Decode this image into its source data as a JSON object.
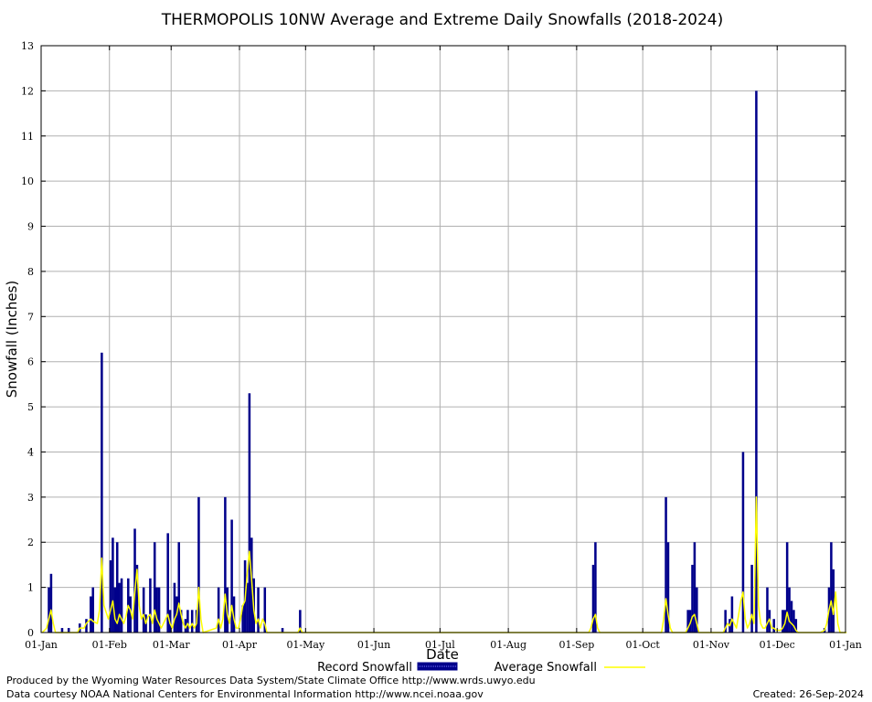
{
  "chart_data": {
    "type": "bar",
    "title": "THERMOPOLIS 10NW Average and Extreme Daily Snowfalls (2018-2024)",
    "xlabel": "Date",
    "ylabel": "Snowfall (Inches)",
    "ylim": [
      0,
      13
    ],
    "xlim_days": [
      0,
      365
    ],
    "grid": true,
    "y_ticks": [
      "0",
      "1",
      "2",
      "3",
      "4",
      "5",
      "6",
      "7",
      "8",
      "9",
      "10",
      "11",
      "12",
      "13"
    ],
    "x_ticks": [
      {
        "label": "01-Jan",
        "day": 0
      },
      {
        "label": "01-Feb",
        "day": 31
      },
      {
        "label": "01-Mar",
        "day": 59
      },
      {
        "label": "01-Apr",
        "day": 90
      },
      {
        "label": "01-May",
        "day": 120
      },
      {
        "label": "01-Jun",
        "day": 151
      },
      {
        "label": "01-Jul",
        "day": 181
      },
      {
        "label": "01-Aug",
        "day": 212
      },
      {
        "label": "01-Sep",
        "day": 243
      },
      {
        "label": "01-Oct",
        "day": 273
      },
      {
        "label": "01-Nov",
        "day": 304
      },
      {
        "label": "01-Dec",
        "day": 334
      },
      {
        "label": "01-Jan",
        "day": 365
      }
    ],
    "legend_position": "bottom",
    "series": [
      {
        "name": "Record Snowfall",
        "kind": "bar",
        "color": "#00008b",
        "points": [
          [
            3,
            1.0
          ],
          [
            4,
            1.3
          ],
          [
            9,
            0.1
          ],
          [
            12,
            0.1
          ],
          [
            17,
            0.2
          ],
          [
            20,
            0.3
          ],
          [
            22,
            0.8
          ],
          [
            23,
            1.0
          ],
          [
            27,
            6.2
          ],
          [
            31,
            1.6
          ],
          [
            32,
            2.1
          ],
          [
            33,
            1.0
          ],
          [
            34,
            2.0
          ],
          [
            35,
            1.1
          ],
          [
            36,
            1.2
          ],
          [
            39,
            1.2
          ],
          [
            40,
            0.8
          ],
          [
            42,
            2.3
          ],
          [
            43,
            1.5
          ],
          [
            46,
            1.0
          ],
          [
            47,
            0.4
          ],
          [
            49,
            1.2
          ],
          [
            51,
            2.0
          ],
          [
            52,
            1.0
          ],
          [
            53,
            1.0
          ],
          [
            57,
            2.2
          ],
          [
            58,
            0.5
          ],
          [
            60,
            1.1
          ],
          [
            61,
            0.8
          ],
          [
            62,
            2.0
          ],
          [
            63,
            0.5
          ],
          [
            65,
            0.3
          ],
          [
            66,
            0.5
          ],
          [
            68,
            0.5
          ],
          [
            70,
            0.5
          ],
          [
            71,
            3.0
          ],
          [
            80,
            1.0
          ],
          [
            83,
            3.0
          ],
          [
            84,
            1.0
          ],
          [
            86,
            2.5
          ],
          [
            87,
            0.8
          ],
          [
            91,
            0.6
          ],
          [
            92,
            1.6
          ],
          [
            93,
            1.1
          ],
          [
            94,
            5.3
          ],
          [
            95,
            2.1
          ],
          [
            96,
            1.2
          ],
          [
            98,
            1.0
          ],
          [
            101,
            1.0
          ],
          [
            109,
            0.1
          ],
          [
            117,
            0.5
          ],
          [
            250,
            1.5
          ],
          [
            251,
            2.0
          ],
          [
            283,
            3.0
          ],
          [
            284,
            2.0
          ],
          [
            293,
            0.5
          ],
          [
            294,
            0.5
          ],
          [
            295,
            1.5
          ],
          [
            296,
            2.0
          ],
          [
            297,
            1.0
          ],
          [
            310,
            0.5
          ],
          [
            312,
            0.3
          ],
          [
            313,
            0.8
          ],
          [
            318,
            4.0
          ],
          [
            322,
            1.5
          ],
          [
            324,
            12.0
          ],
          [
            329,
            1.0
          ],
          [
            330,
            0.5
          ],
          [
            332,
            0.3
          ],
          [
            336,
            0.5
          ],
          [
            337,
            0.5
          ],
          [
            338,
            2.0
          ],
          [
            339,
            1.0
          ],
          [
            340,
            0.7
          ],
          [
            341,
            0.5
          ],
          [
            342,
            0.3
          ],
          [
            355,
            0.1
          ],
          [
            357,
            1.0
          ],
          [
            358,
            2.0
          ],
          [
            359,
            1.4
          ]
        ]
      },
      {
        "name": "Average Snowfall",
        "kind": "line",
        "color": "#ffff00",
        "points": [
          [
            0,
            0.0
          ],
          [
            2,
            0.1
          ],
          [
            3,
            0.3
          ],
          [
            4,
            0.5
          ],
          [
            5,
            0.2
          ],
          [
            6,
            0.0
          ],
          [
            16,
            0.0
          ],
          [
            17,
            0.1
          ],
          [
            19,
            0.1
          ],
          [
            20,
            0.2
          ],
          [
            22,
            0.3
          ],
          [
            23,
            0.25
          ],
          [
            25,
            0.2
          ],
          [
            26,
            0.5
          ],
          [
            27,
            1.65
          ],
          [
            28,
            0.6
          ],
          [
            30,
            0.3
          ],
          [
            31,
            0.5
          ],
          [
            32,
            0.7
          ],
          [
            33,
            0.3
          ],
          [
            34,
            0.2
          ],
          [
            35,
            0.4
          ],
          [
            36,
            0.3
          ],
          [
            37,
            0.2
          ],
          [
            38,
            0.35
          ],
          [
            39,
            0.6
          ],
          [
            40,
            0.5
          ],
          [
            41,
            0.3
          ],
          [
            42,
            0.9
          ],
          [
            43,
            1.4
          ],
          [
            44,
            0.6
          ],
          [
            45,
            0.3
          ],
          [
            46,
            0.4
          ],
          [
            47,
            0.2
          ],
          [
            48,
            0.35
          ],
          [
            49,
            0.4
          ],
          [
            50,
            0.2
          ],
          [
            51,
            0.5
          ],
          [
            52,
            0.3
          ],
          [
            53,
            0.2
          ],
          [
            54,
            0.1
          ],
          [
            56,
            0.3
          ],
          [
            57,
            0.4
          ],
          [
            58,
            0.2
          ],
          [
            59,
            0.1
          ],
          [
            60,
            0.3
          ],
          [
            61,
            0.4
          ],
          [
            62,
            0.65
          ],
          [
            63,
            0.4
          ],
          [
            64,
            0.2
          ],
          [
            65,
            0.1
          ],
          [
            66,
            0.2
          ],
          [
            67,
            0.1
          ],
          [
            68,
            0.2
          ],
          [
            69,
            0.1
          ],
          [
            70,
            0.2
          ],
          [
            71,
            1.0
          ],
          [
            72,
            0.3
          ],
          [
            73,
            0.0
          ],
          [
            79,
            0.1
          ],
          [
            80,
            0.3
          ],
          [
            81,
            0.1
          ],
          [
            82,
            0.3
          ],
          [
            83,
            0.85
          ],
          [
            84,
            0.4
          ],
          [
            85,
            0.2
          ],
          [
            86,
            0.6
          ],
          [
            87,
            0.3
          ],
          [
            88,
            0.1
          ],
          [
            89,
            0.1
          ],
          [
            90,
            0.3
          ],
          [
            91,
            0.6
          ],
          [
            92,
            0.7
          ],
          [
            93,
            1.3
          ],
          [
            94,
            1.8
          ],
          [
            95,
            1.2
          ],
          [
            96,
            0.5
          ],
          [
            97,
            0.2
          ],
          [
            98,
            0.3
          ],
          [
            99,
            0.1
          ],
          [
            100,
            0.3
          ],
          [
            101,
            0.2
          ],
          [
            102,
            0.0
          ],
          [
            116,
            0.0
          ],
          [
            117,
            0.1
          ],
          [
            118,
            0.0
          ],
          [
            248,
            0.0
          ],
          [
            249,
            0.1
          ],
          [
            250,
            0.3
          ],
          [
            251,
            0.4
          ],
          [
            252,
            0.1
          ],
          [
            253,
            0.0
          ],
          [
            281,
            0.0
          ],
          [
            282,
            0.3
          ],
          [
            283,
            0.75
          ],
          [
            284,
            0.4
          ],
          [
            285,
            0.1
          ],
          [
            286,
            0.0
          ],
          [
            292,
            0.0
          ],
          [
            293,
            0.1
          ],
          [
            294,
            0.2
          ],
          [
            295,
            0.35
          ],
          [
            296,
            0.4
          ],
          [
            297,
            0.2
          ],
          [
            298,
            0.0
          ],
          [
            309,
            0.0
          ],
          [
            310,
            0.1
          ],
          [
            311,
            0.2
          ],
          [
            312,
            0.15
          ],
          [
            313,
            0.3
          ],
          [
            314,
            0.2
          ],
          [
            315,
            0.1
          ],
          [
            316,
            0.4
          ],
          [
            317,
            0.7
          ],
          [
            318,
            0.9
          ],
          [
            319,
            0.3
          ],
          [
            320,
            0.1
          ],
          [
            321,
            0.2
          ],
          [
            322,
            0.4
          ],
          [
            323,
            0.2
          ],
          [
            324,
            3.0
          ],
          [
            325,
            0.6
          ],
          [
            326,
            0.2
          ],
          [
            327,
            0.1
          ],
          [
            328,
            0.1
          ],
          [
            329,
            0.2
          ],
          [
            330,
            0.3
          ],
          [
            331,
            0.1
          ],
          [
            332,
            0.1
          ],
          [
            333,
            0.05
          ],
          [
            335,
            0.05
          ],
          [
            336,
            0.1
          ],
          [
            337,
            0.2
          ],
          [
            338,
            0.45
          ],
          [
            339,
            0.25
          ],
          [
            340,
            0.2
          ],
          [
            341,
            0.15
          ],
          [
            342,
            0.05
          ],
          [
            343,
            0.0
          ],
          [
            353,
            0.0
          ],
          [
            355,
            0.05
          ],
          [
            356,
            0.2
          ],
          [
            357,
            0.5
          ],
          [
            358,
            0.7
          ],
          [
            359,
            0.4
          ],
          [
            360,
            0.9
          ],
          [
            361,
            0.2
          ],
          [
            362,
            0.0
          ],
          [
            365,
            0.0
          ]
        ]
      }
    ]
  },
  "footer": {
    "produced_by": "Produced by the Wyoming Water Resources Data System/State Climate Office http://www.wrds.uwyo.edu",
    "data_courtesy": "Data courtesy NOAA National Centers for Environmental Information http://www.ncei.noaa.gov",
    "created": "Created:  26-Sep-2024"
  }
}
